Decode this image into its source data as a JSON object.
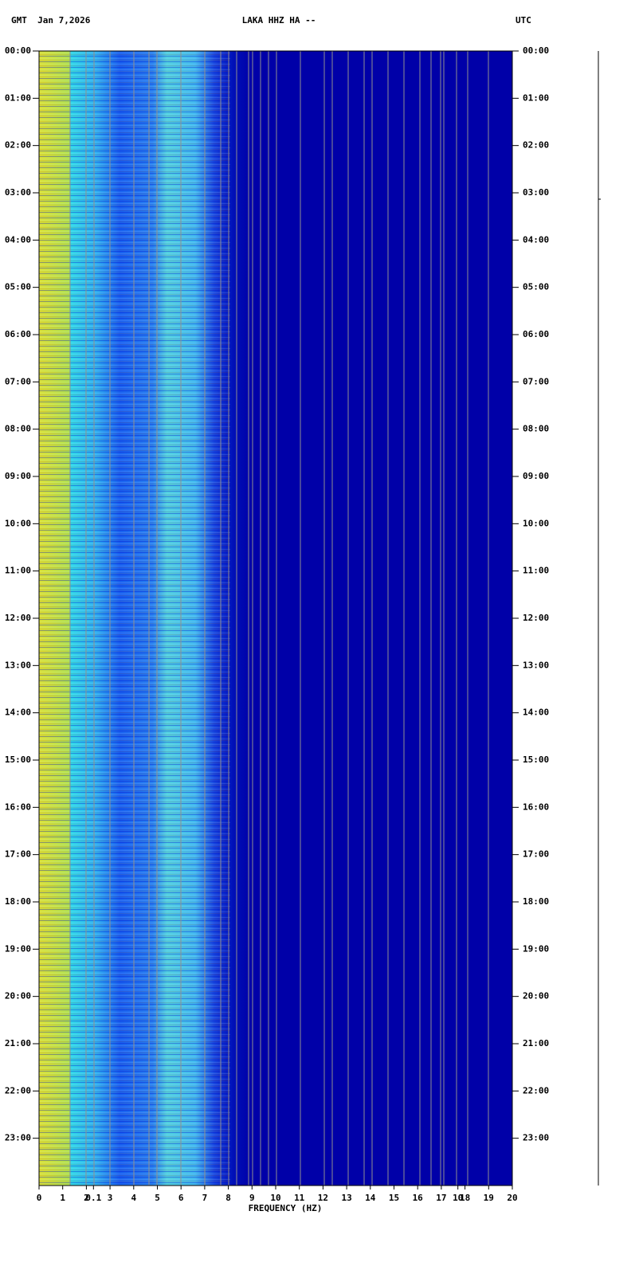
{
  "chart_data": {
    "type": "spectrogram",
    "title": "LAKA HHZ HA --",
    "left_header": "GMT  Jan 7,2026",
    "right_header": "UTC",
    "x_label": "FREQUENCY (HZ)",
    "xlim": [
      0,
      20
    ],
    "xticks": [
      0,
      1,
      2,
      3,
      4,
      5,
      6,
      7,
      8,
      9,
      10,
      11,
      12,
      13,
      14,
      15,
      16,
      17,
      18,
      19,
      20
    ],
    "secondary_xticks": [
      {
        "value": 2.3,
        "label": "0.1"
      },
      {
        "value": 17.7,
        "label": "10"
      }
    ],
    "ylim": [
      0,
      24
    ],
    "yticks": [
      {
        "value": 0,
        "label": "00:00"
      },
      {
        "value": 1,
        "label": "01:00"
      },
      {
        "value": 2,
        "label": "02:00"
      },
      {
        "value": 3,
        "label": "03:00"
      },
      {
        "value": 4,
        "label": "04:00"
      },
      {
        "value": 5,
        "label": "05:00"
      },
      {
        "value": 6,
        "label": "06:00"
      },
      {
        "value": 7,
        "label": "07:00"
      },
      {
        "value": 8,
        "label": "08:00"
      },
      {
        "value": 9,
        "label": "09:00"
      },
      {
        "value": 10,
        "label": "10:00"
      },
      {
        "value": 11,
        "label": "11:00"
      },
      {
        "value": 12,
        "label": "12:00"
      },
      {
        "value": 13,
        "label": "13:00"
      },
      {
        "value": 14,
        "label": "14:00"
      },
      {
        "value": 15,
        "label": "15:00"
      },
      {
        "value": 16,
        "label": "16:00"
      },
      {
        "value": 17,
        "label": "17:00"
      },
      {
        "value": 18,
        "label": "18:00"
      },
      {
        "value": 19,
        "label": "19:00"
      },
      {
        "value": 20,
        "label": "20:00"
      },
      {
        "value": 21,
        "label": "21:00"
      },
      {
        "value": 22,
        "label": "22:00"
      },
      {
        "value": 23,
        "label": "23:00"
      }
    ]
  }
}
